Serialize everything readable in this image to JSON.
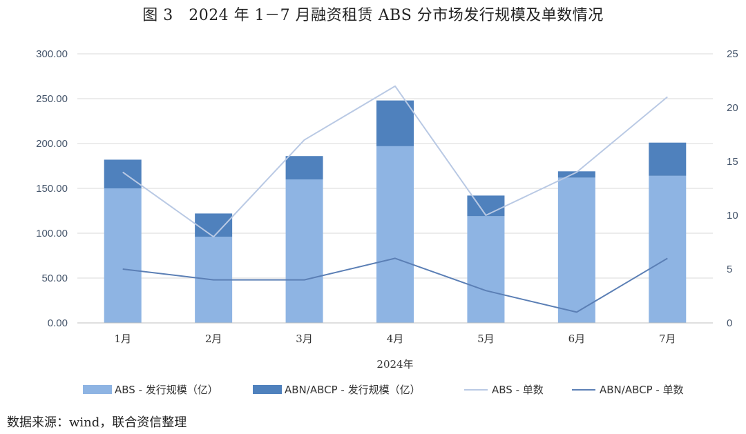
{
  "title": "图 3　2024 年 1－7 月融资租赁 ABS 分市场发行规模及单数情况",
  "source": "数据来源：wind，联合资信整理",
  "chart_data": {
    "type": "bar",
    "stacked": true,
    "categories": [
      "1月",
      "2月",
      "3月",
      "4月",
      "5月",
      "6月",
      "7月"
    ],
    "xlabel": "2024年",
    "ylim": [
      0,
      300
    ],
    "y_ticks": [
      "0.00",
      "50.00",
      "100.00",
      "150.00",
      "200.00",
      "250.00",
      "300.00"
    ],
    "y2lim": [
      0,
      25
    ],
    "y2_ticks": [
      "0",
      "5",
      "10",
      "15",
      "20",
      "25"
    ],
    "grid": true,
    "legend_position": "bottom",
    "series": [
      {
        "name": "ABS - 发行规模（亿）",
        "type": "bar",
        "axis": "left",
        "color": "#8eb4e3",
        "values": [
          150,
          96,
          160,
          197,
          119,
          162,
          164
        ]
      },
      {
        "name": "ABN/ABCP - 发行规模（亿）",
        "type": "bar",
        "axis": "left",
        "color": "#4f81bd",
        "values": [
          32,
          26,
          26,
          51,
          23,
          7,
          37
        ]
      },
      {
        "name": "ABS - 单数",
        "type": "line",
        "axis": "right",
        "color": "#b9c9e4",
        "values": [
          14,
          8,
          17,
          22,
          10,
          14,
          21
        ]
      },
      {
        "name": "ABN/ABCP - 单数",
        "type": "line",
        "axis": "right",
        "color": "#5b7fb5",
        "values": [
          5,
          4,
          4,
          6,
          3,
          1,
          6
        ]
      }
    ]
  }
}
